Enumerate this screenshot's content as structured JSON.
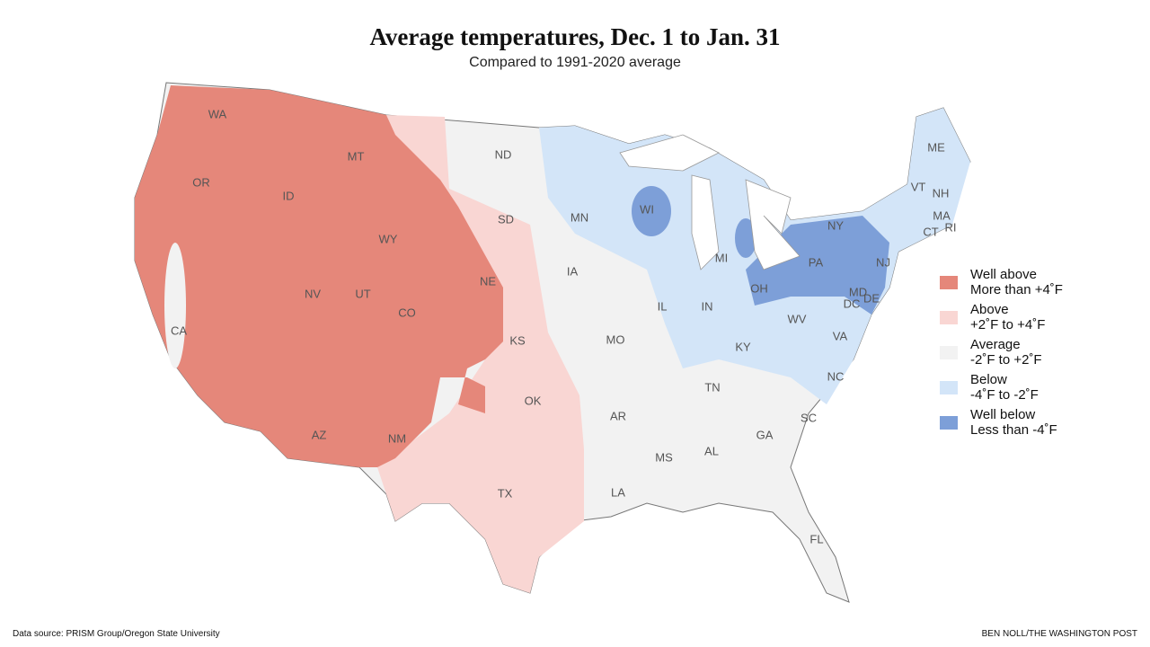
{
  "title": "Average temperatures, Dec. 1 to Jan. 31",
  "subtitle": "Compared to 1991-2020 average",
  "legend": [
    {
      "label": "Well above",
      "range": "More than +4˚F",
      "color": "#e5877a"
    },
    {
      "label": "Above",
      "range": "+2˚F to +4˚F",
      "color": "#f9d6d3"
    },
    {
      "label": "Average",
      "range": "-2˚F to +2˚F",
      "color": "#f2f2f2"
    },
    {
      "label": "Below",
      "range": "-4˚F to -2˚F",
      "color": "#d3e5f8"
    },
    {
      "label": "Well below",
      "range": "Less than -4˚F",
      "color": "#7d9fd8"
    }
  ],
  "states": [
    "WA",
    "OR",
    "ID",
    "MT",
    "WY",
    "NV",
    "UT",
    "CO",
    "CA",
    "AZ",
    "NM",
    "ND",
    "SD",
    "NE",
    "KS",
    "OK",
    "TX",
    "MN",
    "IA",
    "MO",
    "AR",
    "LA",
    "WI",
    "MI",
    "IL",
    "IN",
    "OH",
    "KY",
    "TN",
    "MS",
    "AL",
    "GA",
    "FL",
    "SC",
    "NC",
    "VA",
    "WV",
    "PA",
    "NY",
    "NJ",
    "MD",
    "DE",
    "DC",
    "ME",
    "VT",
    "NH",
    "MA",
    "CT",
    "RI"
  ],
  "source": "Data source: PRISM Group/Oregon State University",
  "credit": "BEN NOLL/THE WASHINGTON POST"
}
